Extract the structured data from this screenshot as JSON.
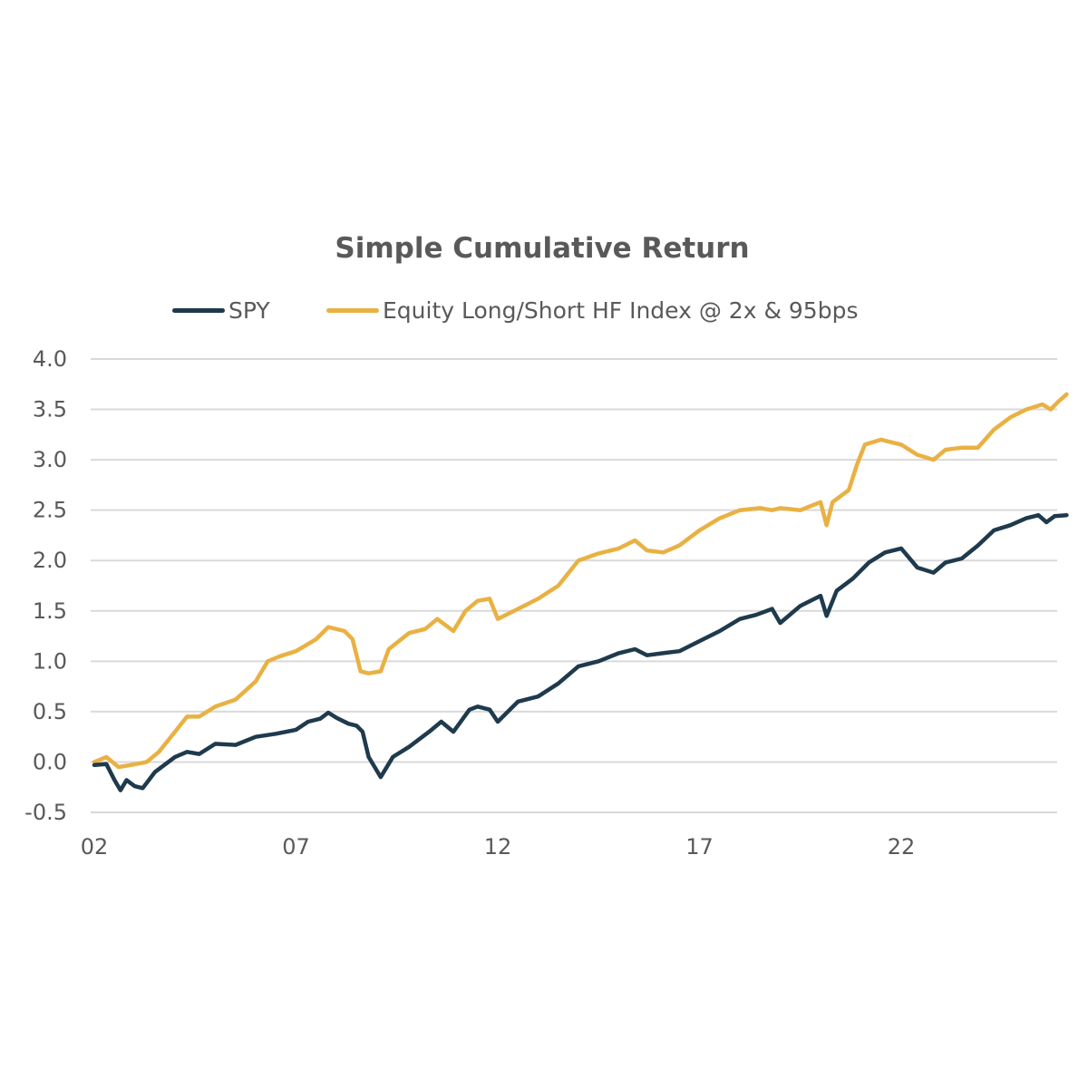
{
  "chart_data": {
    "type": "line",
    "title": "Simple Cumulative Return",
    "xlabel": "",
    "ylabel": "",
    "xlim": [
      2002.0,
      2026.5
    ],
    "ylim": [
      -0.5,
      4.0
    ],
    "x_ticks": [
      {
        "value": 2002,
        "label": "02"
      },
      {
        "value": 2007,
        "label": "07"
      },
      {
        "value": 2012,
        "label": "12"
      },
      {
        "value": 2017,
        "label": "17"
      },
      {
        "value": 2022,
        "label": "22"
      }
    ],
    "y_ticks": [
      {
        "value": 4.0,
        "label": "4.0"
      },
      {
        "value": 3.5,
        "label": "3.5"
      },
      {
        "value": 3.0,
        "label": "3.0"
      },
      {
        "value": 2.5,
        "label": "2.5"
      },
      {
        "value": 2.0,
        "label": "2.0"
      },
      {
        "value": 1.5,
        "label": "1.5"
      },
      {
        "value": 1.0,
        "label": "1.0"
      },
      {
        "value": 0.5,
        "label": "0.5"
      },
      {
        "value": 0.0,
        "label": "0.0"
      },
      {
        "value": -0.5,
        "label": "-0.5"
      }
    ],
    "grid": "horizontal",
    "legend_position": "top",
    "series": [
      {
        "name": "SPY",
        "color": "#1f3a4d",
        "x": [
          2002.0,
          2002.3,
          2002.5,
          2002.65,
          2002.8,
          2003.0,
          2003.2,
          2003.5,
          2004.0,
          2004.3,
          2004.6,
          2005.0,
          2005.5,
          2006.0,
          2006.5,
          2007.0,
          2007.3,
          2007.6,
          2007.8,
          2008.0,
          2008.3,
          2008.5,
          2008.65,
          2008.8,
          2009.1,
          2009.4,
          2009.8,
          2010.3,
          2010.6,
          2010.9,
          2011.3,
          2011.5,
          2011.8,
          2012.0,
          2012.5,
          2013.0,
          2013.5,
          2014.0,
          2014.5,
          2015.0,
          2015.4,
          2015.7,
          2016.1,
          2016.5,
          2017.0,
          2017.5,
          2018.0,
          2018.4,
          2018.8,
          2019.0,
          2019.5,
          2020.0,
          2020.15,
          2020.4,
          2020.8,
          2021.2,
          2021.6,
          2022.0,
          2022.4,
          2022.8,
          2023.1,
          2023.5,
          2023.9,
          2024.3,
          2024.7,
          2025.1,
          2025.4,
          2025.6,
          2025.8,
          2026.1
        ],
        "values": [
          -0.03,
          -0.02,
          -0.18,
          -0.28,
          -0.18,
          -0.24,
          -0.26,
          -0.1,
          0.05,
          0.1,
          0.08,
          0.18,
          0.17,
          0.25,
          0.28,
          0.32,
          0.4,
          0.43,
          0.49,
          0.44,
          0.38,
          0.36,
          0.3,
          0.05,
          -0.15,
          0.05,
          0.15,
          0.3,
          0.4,
          0.3,
          0.52,
          0.55,
          0.52,
          0.4,
          0.6,
          0.65,
          0.78,
          0.95,
          1.0,
          1.08,
          1.12,
          1.06,
          1.08,
          1.1,
          1.2,
          1.3,
          1.42,
          1.46,
          1.52,
          1.38,
          1.55,
          1.65,
          1.45,
          1.7,
          1.82,
          1.98,
          2.08,
          2.12,
          1.93,
          1.88,
          1.98,
          2.02,
          2.15,
          2.3,
          2.35,
          2.42,
          2.45,
          2.38,
          2.44,
          2.45
        ]
      },
      {
        "name": "Equity Long/Short HF Index @ 2x & 95bps",
        "color": "#e9b143",
        "x": [
          2002.0,
          2002.3,
          2002.6,
          2002.9,
          2003.3,
          2003.6,
          2004.0,
          2004.3,
          2004.6,
          2005.0,
          2005.5,
          2006.0,
          2006.3,
          2006.6,
          2007.0,
          2007.5,
          2007.8,
          2008.2,
          2008.4,
          2008.6,
          2008.8,
          2009.1,
          2009.3,
          2009.8,
          2010.2,
          2010.5,
          2010.9,
          2011.2,
          2011.5,
          2011.8,
          2012.0,
          2012.5,
          2013.0,
          2013.5,
          2014.0,
          2014.5,
          2015.0,
          2015.4,
          2015.7,
          2016.1,
          2016.5,
          2017.0,
          2017.5,
          2018.0,
          2018.5,
          2018.8,
          2019.0,
          2019.5,
          2020.0,
          2020.15,
          2020.3,
          2020.7,
          2020.9,
          2021.1,
          2021.5,
          2022.0,
          2022.4,
          2022.8,
          2023.1,
          2023.5,
          2023.9,
          2024.3,
          2024.7,
          2025.1,
          2025.5,
          2025.7,
          2025.9,
          2026.1
        ],
        "values": [
          0.0,
          0.05,
          -0.05,
          -0.03,
          0.0,
          0.1,
          0.3,
          0.45,
          0.45,
          0.55,
          0.62,
          0.8,
          1.0,
          1.05,
          1.1,
          1.22,
          1.34,
          1.3,
          1.22,
          0.9,
          0.88,
          0.9,
          1.12,
          1.28,
          1.32,
          1.42,
          1.3,
          1.5,
          1.6,
          1.62,
          1.42,
          1.52,
          1.62,
          1.75,
          2.0,
          2.07,
          2.12,
          2.2,
          2.1,
          2.08,
          2.15,
          2.3,
          2.42,
          2.5,
          2.52,
          2.5,
          2.52,
          2.5,
          2.58,
          2.35,
          2.58,
          2.7,
          2.95,
          3.15,
          3.2,
          3.15,
          3.05,
          3.0,
          3.1,
          3.12,
          3.12,
          3.3,
          3.42,
          3.5,
          3.55,
          3.5,
          3.58,
          3.65
        ]
      }
    ]
  }
}
